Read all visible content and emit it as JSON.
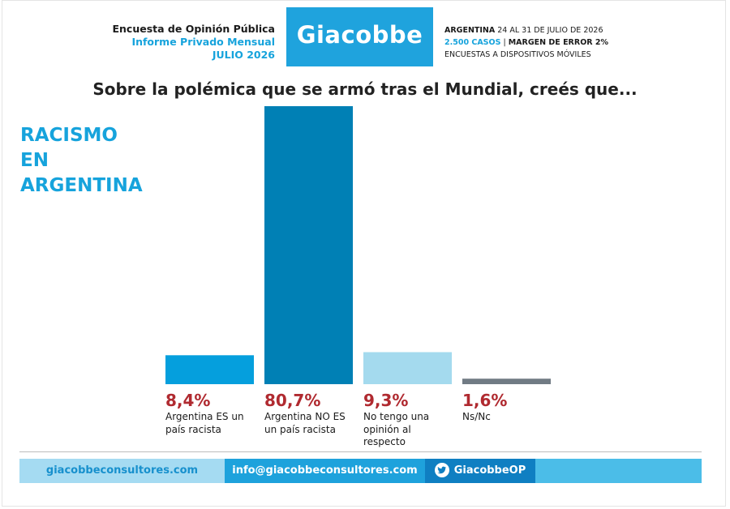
{
  "header": {
    "title": "Encuesta de Opinión Pública",
    "subtitle": "Informe Privado Mensual",
    "date": "JULIO 2026",
    "brand": "Giacobbe",
    "country": "ARGENTINA",
    "fieldwork": "24 AL 31 DE JULIO DE 2026",
    "cases": "2.500 CASOS",
    "separator": "|",
    "margin": "MARGEN DE ERROR 2%",
    "method": "ENCUESTAS A DISPOSITIVOS MÓVILES"
  },
  "question": "Sobre la polémica que se armó tras el Mundial, creés que...",
  "side_title": [
    "RACISMO",
    "EN",
    "ARGENTINA"
  ],
  "chart_data": {
    "type": "bar",
    "categories": [
      "Argentina ES un país racista",
      "Argentina NO ES un país racista",
      "No tengo una opinión al respecto",
      "Ns/Nc"
    ],
    "values": [
      8.4,
      80.7,
      9.3,
      1.6
    ],
    "value_labels": [
      "8,4%",
      "80,7%",
      "9,3%",
      "1,6%"
    ],
    "colors": [
      "#059fdd",
      "#0080b5",
      "#a4daee",
      "#717b84"
    ],
    "ylim": [
      0,
      80.7
    ],
    "grid": false,
    "unit": "%"
  },
  "footer": {
    "website": "giacobbeconsultores.com",
    "email": "info@giacobbeconsultores.com",
    "twitter": "GiacobbeOP",
    "twitter_icon": "twitter-bird-icon"
  }
}
